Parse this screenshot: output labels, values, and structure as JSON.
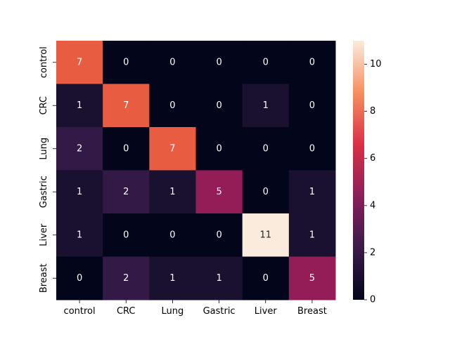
{
  "chart_data": {
    "type": "heatmap",
    "title": "",
    "xlabel": "",
    "ylabel": "",
    "x_categories": [
      "control",
      "CRC",
      "Lung",
      "Gastric",
      "Liver",
      "Breast"
    ],
    "y_categories": [
      "control",
      "CRC",
      "Lung",
      "Gastric",
      "Liver",
      "Breast"
    ],
    "values": [
      [
        7,
        0,
        0,
        0,
        0,
        0
      ],
      [
        1,
        7,
        0,
        0,
        1,
        0
      ],
      [
        2,
        0,
        7,
        0,
        0,
        0
      ],
      [
        1,
        2,
        1,
        5,
        0,
        1
      ],
      [
        1,
        0,
        0,
        0,
        11,
        1
      ],
      [
        0,
        2,
        1,
        1,
        0,
        5
      ]
    ],
    "annotations": "shown",
    "colormap": "rocket",
    "colorbar": {
      "range": [
        0,
        11
      ],
      "ticks": [
        0,
        2,
        4,
        6,
        8,
        10
      ],
      "placement": "right"
    }
  }
}
